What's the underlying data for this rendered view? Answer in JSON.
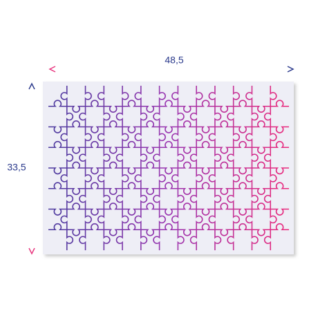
{
  "dimensions": {
    "width_label": "48,5",
    "height_label": "33,5"
  }
}
